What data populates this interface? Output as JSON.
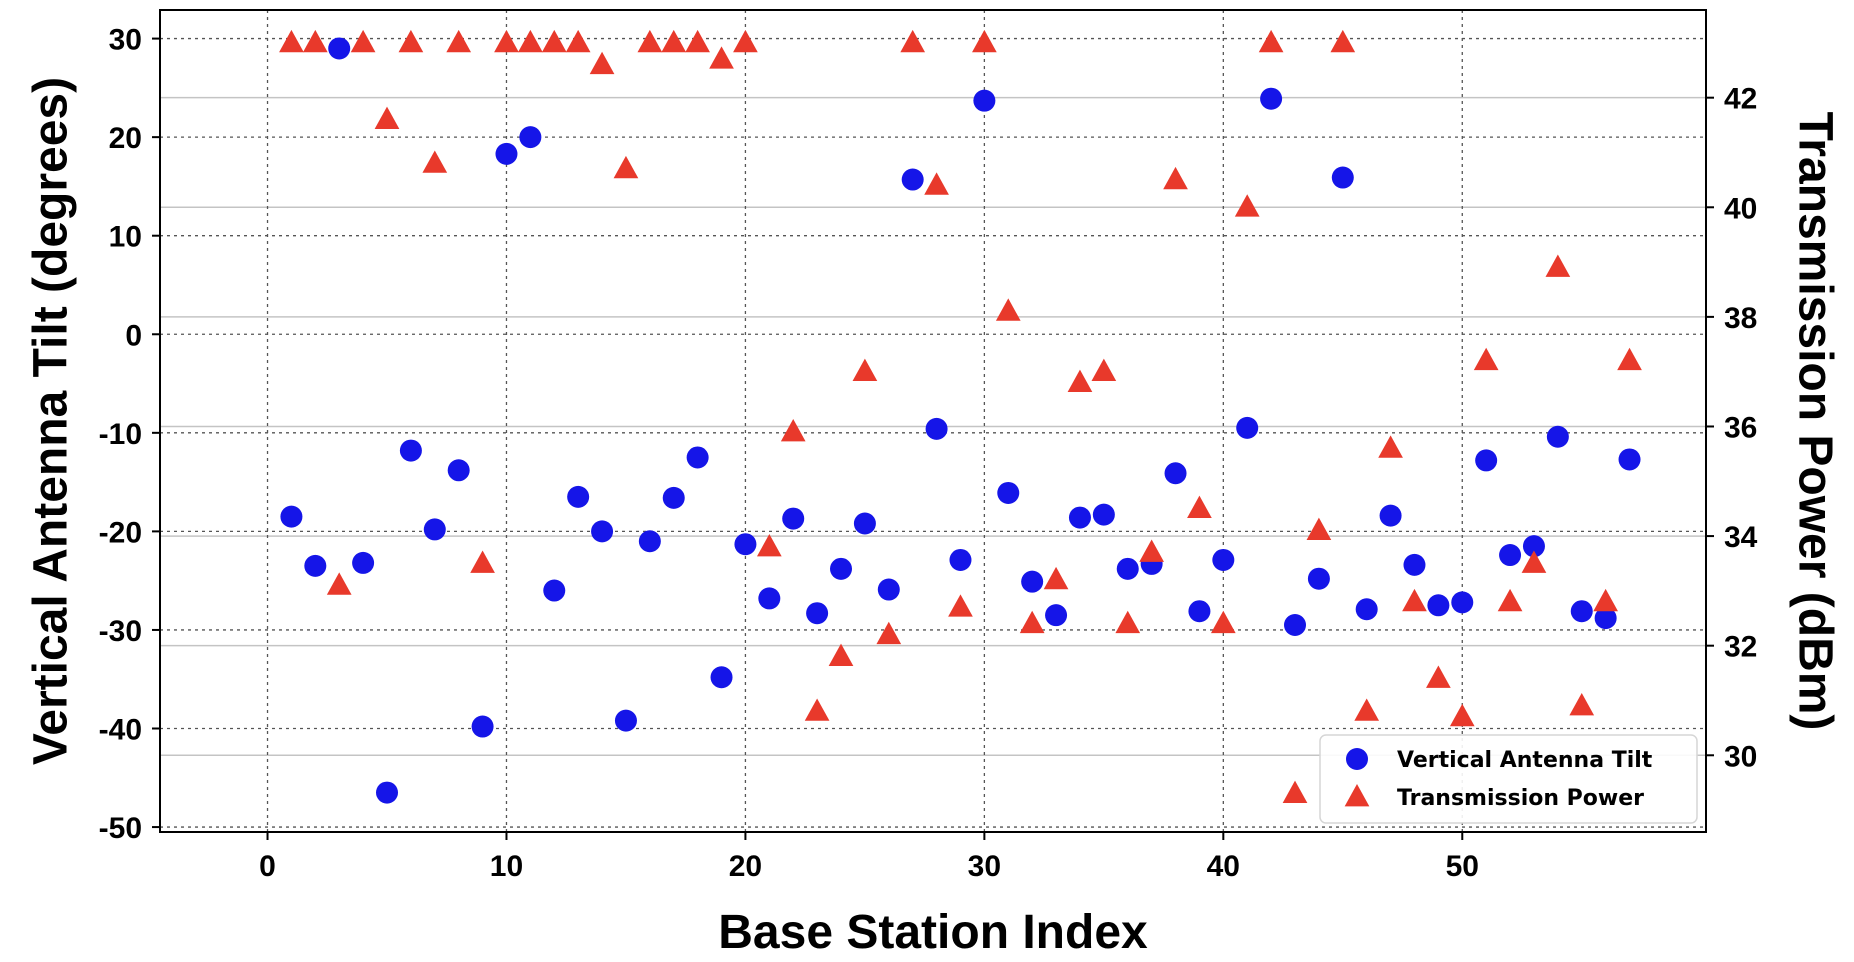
{
  "chart_data": {
    "type": "scatter",
    "xlabel": "Base Station Index",
    "ylabel": "Vertical Antenna Tilt (degrees)",
    "y2label": "Transmission Power (dBm)",
    "xlim": [
      -4.5,
      60.2
    ],
    "ylim": [
      -50.5,
      32.9
    ],
    "y2lim": [
      28.6,
      43.6
    ],
    "xticks": [
      0,
      10,
      20,
      30,
      40,
      50
    ],
    "yticks": [
      30,
      20,
      10,
      0,
      -10,
      -20,
      -30,
      -40,
      -50
    ],
    "y2ticks": [
      42,
      40,
      38,
      36,
      34,
      32,
      30
    ],
    "grid": true,
    "legend_position": "lower-right",
    "colors": {
      "tilt": "#1515e8",
      "power": "#e8392b"
    },
    "series": [
      {
        "name": "Vertical Antenna Tilt",
        "axis": "left",
        "marker": "circle",
        "points": [
          [
            1,
            -18.5
          ],
          [
            2,
            -23.5
          ],
          [
            3,
            29
          ],
          [
            4,
            -23.2
          ],
          [
            5,
            -46.5
          ],
          [
            6,
            -11.8
          ],
          [
            7,
            -19.8
          ],
          [
            8,
            -13.8
          ],
          [
            9,
            -39.8
          ],
          [
            10,
            18.3
          ],
          [
            11,
            20
          ],
          [
            12,
            -26
          ],
          [
            13,
            -16.5
          ],
          [
            14,
            -20
          ],
          [
            15,
            -39.2
          ],
          [
            16,
            -21
          ],
          [
            17,
            -16.6
          ],
          [
            18,
            -12.5
          ],
          [
            19,
            -34.8
          ],
          [
            20,
            -21.3
          ],
          [
            21,
            -26.8
          ],
          [
            22,
            -18.7
          ],
          [
            23,
            -28.3
          ],
          [
            24,
            -23.8
          ],
          [
            25,
            -19.2
          ],
          [
            26,
            -25.9
          ],
          [
            27,
            15.7
          ],
          [
            28,
            -9.6
          ],
          [
            29,
            -22.9
          ],
          [
            30,
            23.7
          ],
          [
            31,
            -16.1
          ],
          [
            32,
            -25.1
          ],
          [
            33,
            -28.5
          ],
          [
            34,
            -18.6
          ],
          [
            35,
            -18.3
          ],
          [
            36,
            -23.8
          ],
          [
            37,
            -23.3
          ],
          [
            38,
            -14.1
          ],
          [
            39,
            -28.1
          ],
          [
            40,
            -22.9
          ],
          [
            41,
            -9.5
          ],
          [
            42,
            23.9
          ],
          [
            43,
            -29.5
          ],
          [
            44,
            -24.8
          ],
          [
            45,
            15.9
          ],
          [
            46,
            -27.9
          ],
          [
            47,
            -18.4
          ],
          [
            48,
            -23.4
          ],
          [
            49,
            -27.5
          ],
          [
            50,
            -27.2
          ],
          [
            51,
            -12.8
          ],
          [
            52,
            -22.4
          ],
          [
            53,
            -21.5
          ],
          [
            54,
            -10.4
          ],
          [
            55,
            -28.1
          ],
          [
            56,
            -28.8
          ],
          [
            57,
            -12.7
          ]
        ]
      },
      {
        "name": "Transmission Power",
        "axis": "right",
        "marker": "triangle",
        "points": [
          [
            1,
            43
          ],
          [
            2,
            43
          ],
          [
            3,
            33.1
          ],
          [
            4,
            43
          ],
          [
            5,
            41.6
          ],
          [
            6,
            43
          ],
          [
            7,
            40.8
          ],
          [
            8,
            43
          ],
          [
            9,
            33.5
          ],
          [
            10,
            43
          ],
          [
            11,
            43
          ],
          [
            12,
            43
          ],
          [
            13,
            43
          ],
          [
            14,
            42.6
          ],
          [
            15,
            40.7
          ],
          [
            16,
            43
          ],
          [
            17,
            43
          ],
          [
            18,
            43
          ],
          [
            19,
            42.7
          ],
          [
            20,
            43
          ],
          [
            21,
            33.8
          ],
          [
            22,
            35.9
          ],
          [
            23,
            30.8
          ],
          [
            24,
            31.8
          ],
          [
            25,
            37
          ],
          [
            26,
            32.2
          ],
          [
            27,
            43
          ],
          [
            28,
            40.4
          ],
          [
            29,
            32.7
          ],
          [
            30,
            43
          ],
          [
            31,
            38.1
          ],
          [
            32,
            32.4
          ],
          [
            33,
            33.2
          ],
          [
            34,
            36.8
          ],
          [
            35,
            37
          ],
          [
            36,
            32.4
          ],
          [
            37,
            33.7
          ],
          [
            38,
            40.5
          ],
          [
            39,
            34.5
          ],
          [
            40,
            32.4
          ],
          [
            41,
            40
          ],
          [
            42,
            43
          ],
          [
            43,
            29.3
          ],
          [
            44,
            34.1
          ],
          [
            45,
            43
          ],
          [
            46,
            30.8
          ],
          [
            47,
            35.6
          ],
          [
            48,
            32.8
          ],
          [
            49,
            31.4
          ],
          [
            50,
            30.7
          ],
          [
            51,
            37.2
          ],
          [
            52,
            32.8
          ],
          [
            53,
            33.5
          ],
          [
            54,
            38.9
          ],
          [
            55,
            30.9
          ],
          [
            56,
            32.8
          ],
          [
            57,
            37.2
          ]
        ]
      }
    ]
  }
}
